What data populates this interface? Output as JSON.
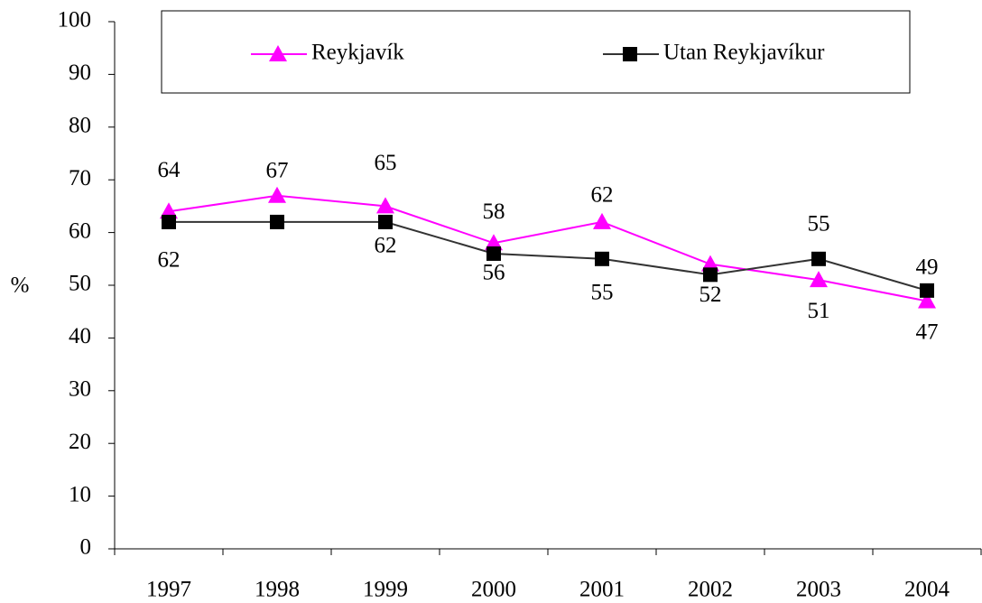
{
  "chart_data": {
    "type": "line",
    "ylabel": "%",
    "categories": [
      "1997",
      "1998",
      "1999",
      "2000",
      "2001",
      "2002",
      "2003",
      "2004"
    ],
    "series": [
      {
        "name": "Reykjavík",
        "color": "#ff00ff",
        "marker": "triangle",
        "values": [
          64,
          67,
          65,
          58,
          62,
          54,
          51,
          47
        ],
        "value_labels": [
          "64",
          "67",
          "65",
          "58",
          "62",
          null,
          "51",
          "47"
        ]
      },
      {
        "name": "Utan Reykjavíkur",
        "color": "#000000",
        "line_color": "#333333",
        "marker": "square",
        "values": [
          62,
          62,
          62,
          56,
          55,
          52,
          55,
          49
        ],
        "value_labels": [
          "62",
          null,
          "62",
          "56",
          "55",
          "52",
          "55",
          "49"
        ]
      }
    ],
    "ylim": [
      0,
      100
    ],
    "yticks": [
      0,
      10,
      20,
      30,
      40,
      50,
      60,
      70,
      80,
      90,
      100
    ],
    "grid": false,
    "legend": "top"
  }
}
